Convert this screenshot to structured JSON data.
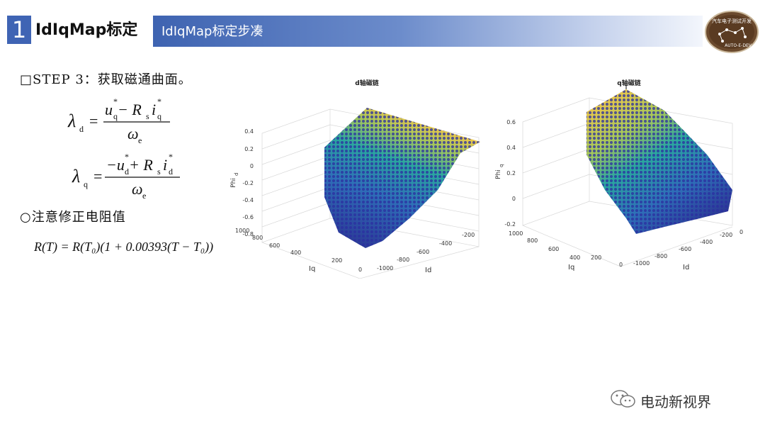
{
  "header": {
    "section_number": "1",
    "section_title": "IdIqMap标定",
    "subtitle": "IdIqMap标定步凑",
    "logo_text": "汽车电子测试开发",
    "logo_subtext": "AUTO-E-DEV"
  },
  "content": {
    "step_label": "□STEP 3：获取磁通曲面。",
    "note_label": "○注意修正电阻值"
  },
  "equations": {
    "lambda_d": {
      "lhs": "λ",
      "lhs_sub": "d",
      "num_u": "u",
      "num_u_sub": "q",
      "num_minus": " − R",
      "num_r_sub": "s",
      "num_i": "i",
      "num_i_sub": "q",
      "star": "*",
      "den": "ω",
      "den_sub": "e",
      "equals": "="
    },
    "lambda_q": {
      "lhs": "λ",
      "lhs_sub": "q",
      "num_neg": "−u",
      "num_u_sub": "d",
      "num_plus": " + R",
      "num_r_sub": "s",
      "num_i": "i",
      "num_i_sub": "d",
      "star": "*",
      "den": "ω",
      "den_sub": "e",
      "equals": "="
    },
    "resistance": "R(T) = R(T₀)(1 + 0.00393(T − T₀))"
  },
  "charts": [
    {
      "title": "d轴磁链",
      "zlabel": "Phi",
      "zlabel_sub": "d",
      "xlabel": "Id",
      "ylabel": "Iq",
      "z_ticks": [
        "0.4",
        "0.2",
        "0",
        "-0.2",
        "-0.4",
        "-0.6",
        "-0.8"
      ],
      "iq_ticks": [
        "1000",
        "800",
        "600",
        "400",
        "200",
        "0"
      ],
      "id_ticks": [
        "-1000",
        "-800",
        "-600",
        "-400",
        "-200"
      ]
    },
    {
      "title": "q轴磁链",
      "zlabel": "Phi",
      "zlabel_sub": "q",
      "xlabel": "Id",
      "ylabel": "Iq",
      "z_ticks": [
        "0.6",
        "0.4",
        "0.2",
        "0",
        "-0.2"
      ],
      "iq_ticks": [
        "1000",
        "800",
        "600",
        "400",
        "200",
        "0"
      ],
      "id_ticks": [
        "-1000",
        "-800",
        "-600",
        "-400",
        "-200",
        "0"
      ]
    }
  ],
  "colors": {
    "accent": "#3f64b4",
    "surface_low": "#2b2f8f",
    "surface_mid": "#2aa7a0",
    "surface_high": "#f0c84a"
  },
  "watermark": {
    "text": "电动新视界",
    "icon": "wechat-icon"
  }
}
